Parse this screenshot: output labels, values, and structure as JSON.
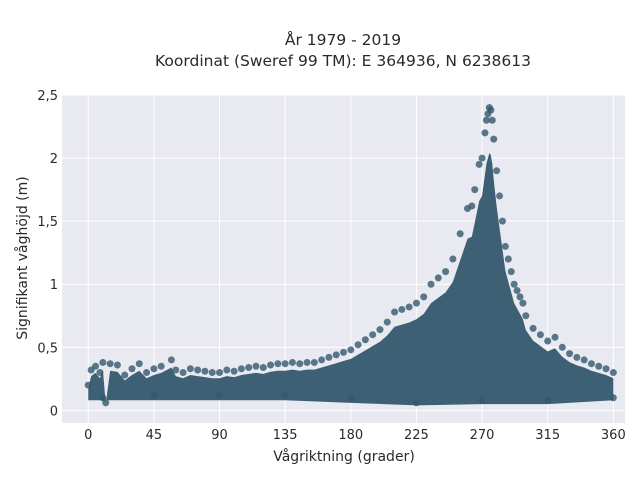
{
  "chart_data": {
    "type": "scatter",
    "title": "År 1979 - 2019",
    "subtitle": "Koordinat (Sweref 99 TM): E 364936, N 6238613",
    "xlabel": "Vågriktning (grader)",
    "ylabel": "Signifikant våghöjd (m)",
    "xlim": [
      -18,
      368
    ],
    "ylim": [
      -0.1,
      2.5
    ],
    "x_ticks": [
      0,
      45,
      90,
      135,
      180,
      225,
      270,
      315,
      360
    ],
    "x_tick_labels": [
      "0",
      "45",
      "90",
      "135",
      "180",
      "225",
      "270",
      "315",
      "360"
    ],
    "y_ticks": [
      0,
      0.5,
      1,
      1.5,
      2,
      2.5
    ],
    "y_tick_labels": [
      "0",
      "0,5",
      "1",
      "1,5",
      "2",
      "2,5"
    ],
    "grid": true,
    "marker_color": "#34586e",
    "plot_background": "#e8e9f1",
    "series": [
      {
        "points": [
          [
            0,
            0.2
          ],
          [
            2,
            0.32
          ],
          [
            5,
            0.35
          ],
          [
            8,
            0.3
          ],
          [
            10,
            0.38
          ],
          [
            12,
            0.06
          ],
          [
            15,
            0.37
          ],
          [
            20,
            0.36
          ],
          [
            25,
            0.28
          ],
          [
            30,
            0.33
          ],
          [
            35,
            0.37
          ],
          [
            40,
            0.3
          ],
          [
            45,
            0.33
          ],
          [
            50,
            0.35
          ],
          [
            57,
            0.4
          ],
          [
            60,
            0.32
          ],
          [
            65,
            0.3
          ],
          [
            70,
            0.33
          ],
          [
            75,
            0.32
          ],
          [
            80,
            0.31
          ],
          [
            85,
            0.3
          ],
          [
            90,
            0.3
          ],
          [
            95,
            0.32
          ],
          [
            100,
            0.31
          ],
          [
            105,
            0.33
          ],
          [
            110,
            0.34
          ],
          [
            115,
            0.35
          ],
          [
            120,
            0.34
          ],
          [
            125,
            0.36
          ],
          [
            130,
            0.37
          ],
          [
            135,
            0.37
          ],
          [
            140,
            0.38
          ],
          [
            145,
            0.37
          ],
          [
            150,
            0.38
          ],
          [
            155,
            0.38
          ],
          [
            160,
            0.4
          ],
          [
            165,
            0.42
          ],
          [
            170,
            0.44
          ],
          [
            175,
            0.46
          ],
          [
            180,
            0.48
          ],
          [
            185,
            0.52
          ],
          [
            190,
            0.56
          ],
          [
            195,
            0.6
          ],
          [
            200,
            0.64
          ],
          [
            205,
            0.7
          ],
          [
            210,
            0.78
          ],
          [
            215,
            0.8
          ],
          [
            220,
            0.82
          ],
          [
            225,
            0.85
          ],
          [
            230,
            0.9
          ],
          [
            235,
            1.0
          ],
          [
            240,
            1.05
          ],
          [
            245,
            1.1
          ],
          [
            250,
            1.2
          ],
          [
            255,
            1.4
          ],
          [
            260,
            1.6
          ],
          [
            263,
            1.62
          ],
          [
            265,
            1.75
          ],
          [
            268,
            1.95
          ],
          [
            270,
            2.0
          ],
          [
            272,
            2.2
          ],
          [
            273,
            2.3
          ],
          [
            274,
            2.35
          ],
          [
            275,
            2.4
          ],
          [
            276,
            2.38
          ],
          [
            277,
            2.3
          ],
          [
            278,
            2.15
          ],
          [
            280,
            1.9
          ],
          [
            282,
            1.7
          ],
          [
            284,
            1.5
          ],
          [
            286,
            1.3
          ],
          [
            288,
            1.2
          ],
          [
            290,
            1.1
          ],
          [
            292,
            1.0
          ],
          [
            294,
            0.95
          ],
          [
            296,
            0.9
          ],
          [
            298,
            0.85
          ],
          [
            300,
            0.75
          ],
          [
            305,
            0.65
          ],
          [
            310,
            0.6
          ],
          [
            315,
            0.55
          ],
          [
            320,
            0.58
          ],
          [
            325,
            0.5
          ],
          [
            330,
            0.45
          ],
          [
            335,
            0.42
          ],
          [
            340,
            0.4
          ],
          [
            345,
            0.37
          ],
          [
            350,
            0.35
          ],
          [
            355,
            0.33
          ],
          [
            360,
            0.3
          ],
          [
            10,
            0.1
          ],
          [
            45,
            0.12
          ],
          [
            90,
            0.12
          ],
          [
            135,
            0.12
          ],
          [
            180,
            0.1
          ],
          [
            225,
            0.06
          ],
          [
            270,
            0.08
          ],
          [
            315,
            0.08
          ],
          [
            360,
            0.1
          ]
        ]
      }
    ]
  }
}
